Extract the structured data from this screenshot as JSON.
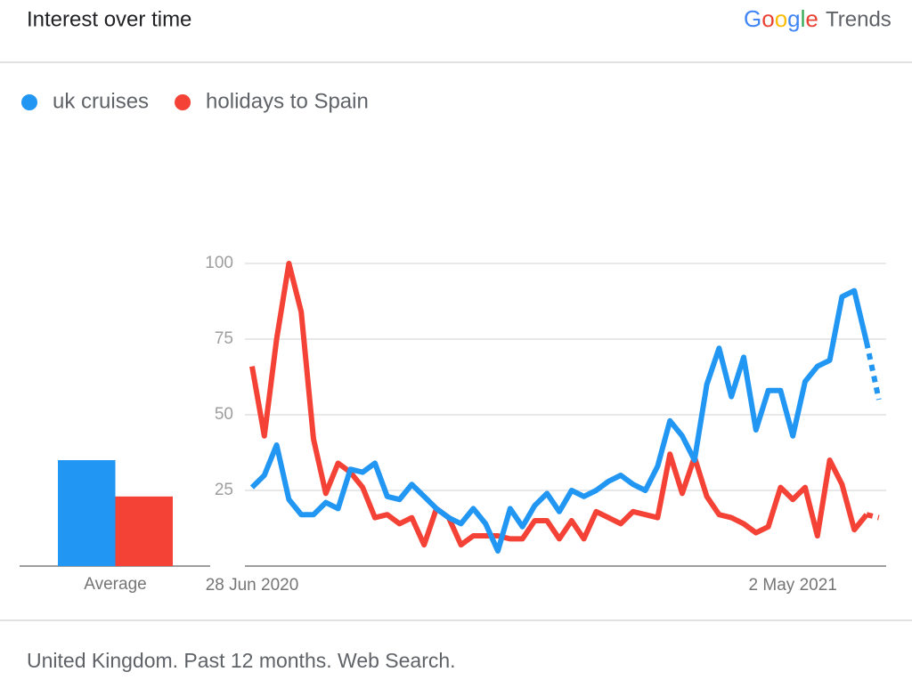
{
  "chart_data": {
    "type": "line",
    "title": "Interest over time",
    "brand": "Google",
    "product": "Trends",
    "footer": "United Kingdom. Past 12 months. Web Search.",
    "average_label": "Average",
    "last_point_partial": true,
    "categories": [
      "28 Jun 2020",
      null,
      null,
      null,
      null,
      null,
      null,
      null,
      null,
      null,
      null,
      null,
      null,
      null,
      null,
      null,
      null,
      null,
      null,
      null,
      null,
      null,
      null,
      null,
      null,
      null,
      null,
      null,
      null,
      null,
      null,
      null,
      null,
      null,
      null,
      null,
      null,
      null,
      null,
      null,
      null,
      null,
      null,
      null,
      "2 May 2021",
      null,
      null,
      null,
      null,
      null,
      null,
      null
    ],
    "series": [
      {
        "name": "uk cruises",
        "color": "#2196f3",
        "average": 35,
        "values": [
          26,
          30,
          40,
          22,
          17,
          17,
          21,
          19,
          32,
          31,
          34,
          23,
          22,
          27,
          23,
          19,
          16,
          14,
          19,
          14,
          5,
          19,
          13,
          20,
          24,
          18,
          25,
          23,
          25,
          28,
          30,
          27,
          25,
          33,
          48,
          43,
          35,
          60,
          72,
          56,
          69,
          45,
          58,
          58,
          43,
          61,
          66,
          68,
          89,
          91,
          74,
          55
        ]
      },
      {
        "name": "holidays to Spain",
        "color": "#f44336",
        "average": 23,
        "values": [
          66,
          43,
          75,
          100,
          84,
          42,
          24,
          34,
          31,
          26,
          16,
          17,
          14,
          16,
          7,
          19,
          16,
          7,
          10,
          10,
          10,
          9,
          9,
          15,
          15,
          9,
          15,
          9,
          18,
          16,
          14,
          18,
          17,
          16,
          37,
          24,
          36,
          23,
          17,
          16,
          14,
          11,
          13,
          26,
          22,
          26,
          10,
          35,
          27,
          12,
          17,
          16
        ]
      }
    ],
    "ylim": [
      0,
      100
    ],
    "yticks": [
      25,
      50,
      75,
      100
    ],
    "grid": true
  }
}
